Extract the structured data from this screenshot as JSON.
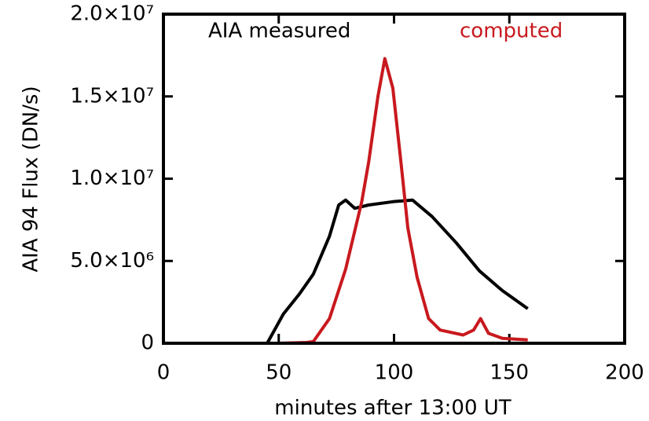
{
  "chart_data": {
    "type": "line",
    "xlabel": "minutes after 13:00 UT",
    "ylabel": "AIA 94 Flux (DN/s)",
    "xlim": [
      0,
      200
    ],
    "xticks": [
      0,
      50,
      100,
      150,
      200
    ],
    "ylim": [
      0,
      20000000
    ],
    "yticks": [
      0,
      {
        "value": 5000000,
        "label": "5.0×10⁶"
      },
      {
        "value": 10000000,
        "label": "1.0×10⁷"
      },
      {
        "value": 15000000,
        "label": "1.5×10⁷"
      },
      {
        "value": 20000000,
        "label": "2.0×10⁷"
      }
    ],
    "legend": "top",
    "series": [
      {
        "name": "AIA measured",
        "color": "#000000",
        "x": [
          45,
          52,
          59,
          65,
          72,
          76,
          79,
          83,
          89,
          99.5,
          108,
          116.5,
          127,
          137,
          147,
          158
        ],
        "values": [
          0,
          1770000,
          3000000,
          4200000,
          6500000,
          8400000,
          8700000,
          8200000,
          8400000,
          8600000,
          8700000,
          7700000,
          6100000,
          4400000,
          3200000,
          2100000
        ]
      },
      {
        "name": "computed",
        "color": "#c8191e",
        "x": [
          32,
          50,
          62,
          65,
          72,
          79,
          86,
          89,
          93,
          96,
          99.5,
          103,
          106,
          110,
          115,
          120,
          130,
          134.5,
          137.5,
          141,
          147,
          158
        ],
        "values": [
          0,
          0,
          50000,
          100000,
          1500000,
          4500000,
          8600000,
          11000000,
          15000000,
          17300000,
          15500000,
          11000000,
          7000000,
          4000000,
          1500000,
          800000,
          500000,
          800000,
          1500000,
          600000,
          300000,
          200000
        ]
      }
    ]
  }
}
